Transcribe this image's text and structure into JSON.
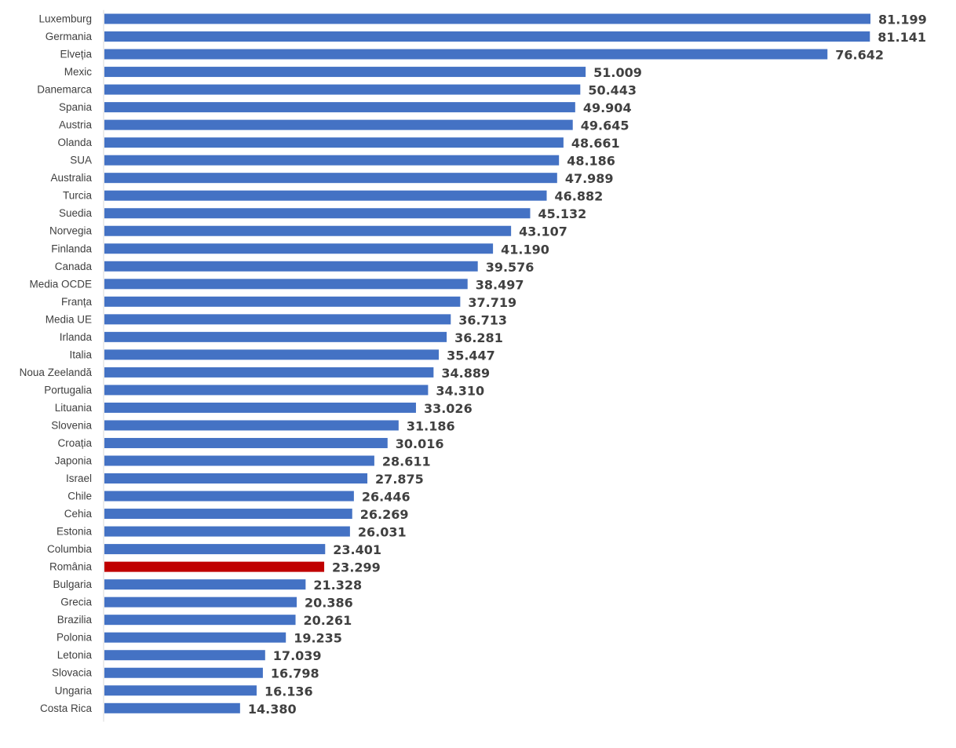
{
  "chart_data": {
    "type": "bar",
    "orientation": "horizontal",
    "categories": [
      "Luxemburg",
      "Germania",
      "Elveția",
      "Mexic",
      "Danemarca",
      "Spania",
      "Austria",
      "Olanda",
      "SUA",
      "Australia",
      "Turcia",
      "Suedia",
      "Norvegia",
      "Finlanda",
      "Canada",
      "Media OCDE",
      "Franța",
      "Media UE",
      "Irlanda",
      "Italia",
      "Noua Zeelandă",
      "Portugalia",
      "Lituania",
      "Slovenia",
      "Croația",
      "Japonia",
      "Israel",
      "Chile",
      "Cehia",
      "Estonia",
      "Columbia",
      "România",
      "Bulgaria",
      "Grecia",
      "Brazilia",
      "Polonia",
      "Letonia",
      "Slovacia",
      "Ungaria",
      "Costa Rica"
    ],
    "values": [
      81199,
      81141,
      76642,
      51009,
      50443,
      49904,
      49645,
      48661,
      48186,
      47989,
      46882,
      45132,
      43107,
      41190,
      39576,
      38497,
      37719,
      36713,
      36281,
      35447,
      34889,
      34310,
      33026,
      31186,
      30016,
      28611,
      27875,
      26446,
      26269,
      26031,
      23401,
      23299,
      21328,
      20386,
      20261,
      19235,
      17039,
      16798,
      16136,
      14380
    ],
    "value_labels": [
      "81.199",
      "81.141",
      "76.642",
      "51.009",
      "50.443",
      "49.904",
      "49.645",
      "48.661",
      "48.186",
      "47.989",
      "46.882",
      "45.132",
      "43.107",
      "41.190",
      "39.576",
      "38.497",
      "37.719",
      "36.713",
      "36.281",
      "35.447",
      "34.889",
      "34.310",
      "33.026",
      "31.186",
      "30.016",
      "28.611",
      "27.875",
      "26.446",
      "26.269",
      "26.031",
      "23.401",
      "23.299",
      "21.328",
      "20.386",
      "20.261",
      "19.235",
      "17.039",
      "16.798",
      "16.136",
      "14.380"
    ],
    "title": "",
    "xlabel": "",
    "ylabel": "",
    "xlim": [
      0,
      85000
    ],
    "grid": false,
    "legend": "none",
    "bar_color": "#4472C4",
    "highlight_category": "România",
    "highlight_color": "#C00000",
    "axis_color": "#D9D9D9",
    "label_color": "#404040"
  }
}
